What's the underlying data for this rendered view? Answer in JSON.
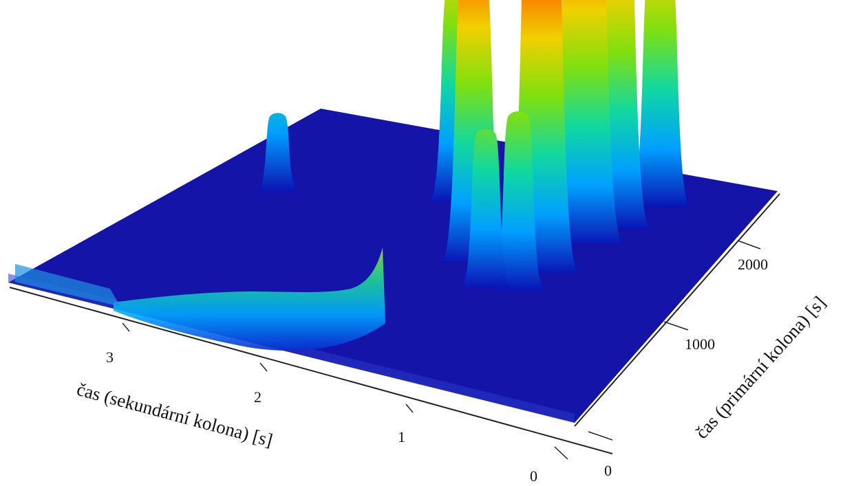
{
  "chart_data": {
    "type": "surface3d",
    "title": "",
    "xlabel": "čas (sekundární kolona) [s]",
    "ylabel": "čas (primární kolona) [s]",
    "zlabel": "",
    "x_ticks": [
      "0",
      "1",
      "2",
      "3"
    ],
    "y_ticks": [
      "0",
      "1000",
      "2000"
    ],
    "xlim": [
      0,
      4
    ],
    "ylim": [
      0,
      2500
    ],
    "colormap": [
      "#0a14b4",
      "#00a0ff",
      "#10d8a0",
      "#7ee010",
      "#f0d000",
      "#ff6000",
      "#e01010",
      "#5a0000"
    ],
    "background_color": "#1414a8",
    "peaks": [
      {
        "x": 0.95,
        "y": 1250,
        "height": 0.92
      },
      {
        "x": 1.0,
        "y": 1050,
        "height": 0.45
      },
      {
        "x": 1.2,
        "y": 1000,
        "height": 0.4
      },
      {
        "x": 1.4,
        "y": 1200,
        "height": 0.72
      },
      {
        "x": 0.85,
        "y": 1600,
        "height": 1.0
      },
      {
        "x": 0.75,
        "y": 1800,
        "height": 0.86
      },
      {
        "x": 0.6,
        "y": 2100,
        "height": 0.62
      },
      {
        "x": 0.85,
        "y": 1900,
        "height": 0.28
      },
      {
        "x": 1.8,
        "y": 1700,
        "height": 0.55
      },
      {
        "x": 2.9,
        "y": 1400,
        "height": 0.2
      }
    ]
  }
}
